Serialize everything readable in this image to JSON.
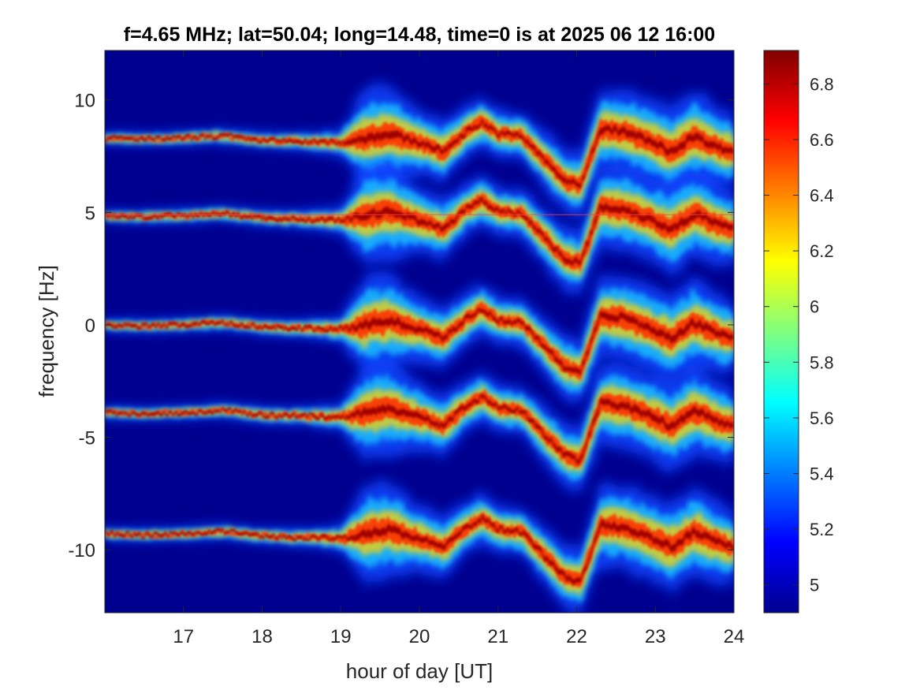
{
  "chart_data": {
    "type": "heatmap",
    "title": "f=4.65 MHz;  lat=50.04; long=14.48, time=0 is at 2025 06 12 16:00",
    "xlabel": "hour of day [UT]",
    "ylabel": "frequency [Hz]",
    "xlim": [
      16,
      24
    ],
    "ylim": [
      -12.8,
      12.2
    ],
    "x_ticks": [
      17,
      18,
      19,
      20,
      21,
      22,
      23,
      24
    ],
    "x_tick_labels": [
      "17",
      "18",
      "19",
      "20",
      "21",
      "22",
      "23",
      "24"
    ],
    "y_ticks": [
      10,
      5,
      0,
      -5,
      -10
    ],
    "y_tick_labels": [
      "10",
      "5",
      "0",
      "-5",
      "-10"
    ],
    "grid": false,
    "colormap": "jet",
    "background_color": "#00008f",
    "colorbar": {
      "position": "right",
      "limits": [
        4.9,
        6.92
      ],
      "ticks": [
        5,
        5.2,
        5.4,
        5.6,
        5.8,
        6,
        6.2,
        6.4,
        6.6,
        6.8
      ],
      "tick_labels": [
        "5",
        "5.2",
        "5.4",
        "5.6",
        "5.8",
        "6",
        "6.2",
        "6.4",
        "6.6",
        "6.8"
      ]
    },
    "trace_offsets_hz": [
      8.3,
      4.85,
      0,
      -3.9,
      -9.3
    ],
    "trace_profile": {
      "hours": [
        16,
        16.5,
        17,
        17.5,
        18,
        18.5,
        19,
        19.3,
        19.6,
        19.9,
        20.1,
        20.3,
        20.6,
        20.8,
        21,
        21.3,
        21.6,
        21.85,
        22.05,
        22.3,
        22.6,
        22.9,
        23.2,
        23.5,
        23.8,
        24
      ],
      "shift_hz": [
        0,
        -0.05,
        0,
        0.1,
        -0.1,
        -0.15,
        -0.2,
        0,
        0.2,
        -0.1,
        -0.3,
        -0.6,
        0.3,
        0.7,
        0.2,
        0.1,
        -1.0,
        -1.9,
        -2.1,
        0.4,
        0.3,
        -0.1,
        -0.6,
        0.1,
        -0.4,
        -0.6
      ],
      "spread_hz": [
        0.12,
        0.12,
        0.13,
        0.14,
        0.15,
        0.17,
        0.25,
        0.9,
        0.9,
        0.7,
        0.6,
        0.6,
        0.5,
        0.5,
        0.45,
        0.45,
        0.55,
        0.6,
        0.6,
        0.75,
        0.8,
        0.8,
        0.85,
        0.85,
        0.75,
        0.7
      ]
    },
    "reference_line_hz": 4.9
  }
}
